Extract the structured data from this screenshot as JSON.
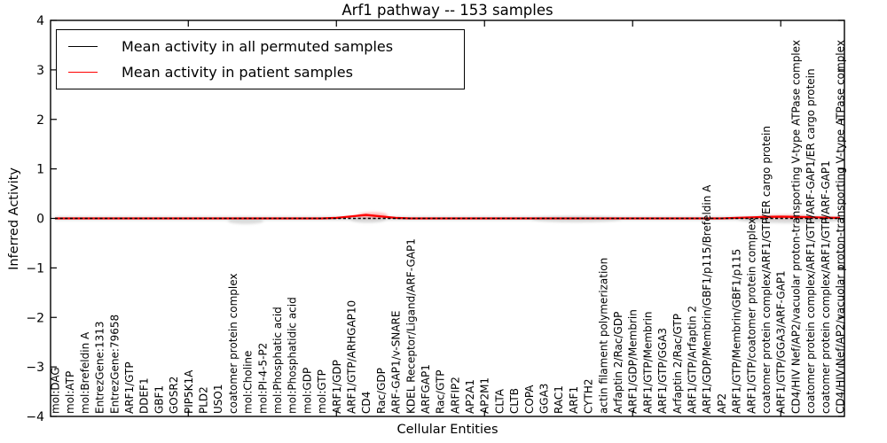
{
  "title": "Arf1 pathway -- 153 samples",
  "legend": {
    "items": [
      {
        "label": "Mean activity in all permuted samples",
        "color": "#000000"
      },
      {
        "label": "Mean activity in patient samples",
        "color": "#ff0000"
      }
    ]
  },
  "axes": {
    "xlabel": "Cellular Entities",
    "ylabel": "Inferred Activity"
  },
  "chart_data": {
    "type": "line",
    "title": "Arf1 pathway -- 153 samples",
    "xlabel": "Cellular Entities",
    "ylabel": "Inferred Activity",
    "ylim": [
      -4,
      4
    ],
    "y_ticks": [
      -4,
      -3,
      -2,
      -1,
      0,
      1,
      2,
      3,
      4
    ],
    "x_major_tick_indices": [
      9,
      19,
      29,
      39,
      49
    ],
    "grid": false,
    "legend_position": "upper left",
    "categories": [
      "mol:DAG",
      "mol:ATP",
      "mol:Brefeldin A",
      "EntrezGene:1313",
      "EntrezGene:79658",
      "ARF1/GTP",
      "DDEF1",
      "GBF1",
      "GOSR2",
      "PIP5K1A",
      "PLD2",
      "USO1",
      "coatomer protein complex",
      "mol:Choline",
      "mol:PI-4-5-P2",
      "mol:Phosphatic acid",
      "mol:Phosphatidic acid",
      "mol:GDP",
      "mol:GTP",
      "ARF1/GDP",
      "ARF1/GTP/ARHGAP10",
      "CD4",
      "Rac/GDP",
      "ARF-GAP1/v-SNARE",
      "KDEL Receptor/Ligand/ARF-GAP1",
      "ARFGAP1",
      "Rac/GTP",
      "ARFIP2",
      "AP2A1",
      "AP2M1",
      "CLTA",
      "CLTB",
      "COPA",
      "GGA3",
      "RAC1",
      "ARF1",
      "CYTH2",
      "actin filament polymerization",
      "Arfaptin 2/Rac/GDP",
      "ARF1/GDP/Membrin",
      "ARF1/GTP/Membrin",
      "ARF1/GTP/GGA3",
      "Arfaptin 2/Rac/GTP",
      "ARF1/GTP/Arfaptin 2",
      "ARF1/GDP/Membrin/GBF1/p115/Brefeldin A",
      "AP2",
      "ARF1/GTP/Membrin/GBF1/p115",
      "ARF1/GTP/coatomer protein complex",
      "coatomer protein complex/ARF1/GTP/ER cargo protein",
      "ARF1/GTP/GGA3/ARF-GAP1",
      "CD4/HIV Nef/AP2/vacuolar proton-transporting V-type ATPase complex",
      "coatomer protein complex/ARF1/GTP/ARF-GAP1/ER cargo protein",
      "coatomer protein complex/ARF1/GTP/ARF-GAP1",
      "CD4/HIV Nef/AP2/vacuolar proton-transporting V-type ATPase complex"
    ],
    "series": [
      {
        "name": "Mean activity in all permuted samples",
        "color": "#000000",
        "values": [
          0,
          0,
          0,
          0,
          0,
          0,
          0,
          0,
          0,
          0,
          0,
          0,
          0,
          0,
          0,
          0,
          0,
          0,
          0,
          0,
          0,
          0,
          0,
          0,
          0,
          0,
          0,
          0,
          0,
          0,
          0,
          0,
          0,
          0,
          0,
          0,
          0,
          0,
          0,
          0,
          0,
          0,
          0,
          0,
          0,
          0,
          0,
          0,
          0,
          0,
          0,
          0,
          0,
          0
        ]
      },
      {
        "name": "Mean activity in patient samples",
        "color": "#ff0000",
        "values": [
          0,
          0,
          0,
          0,
          0,
          0,
          0,
          0,
          0,
          0,
          0,
          0,
          0,
          0,
          0,
          0,
          0,
          0,
          0,
          0.01,
          0.04,
          0.07,
          0.04,
          0.01,
          0,
          0,
          0,
          0,
          0,
          0,
          0,
          0,
          0,
          0,
          0,
          0,
          0,
          0,
          0,
          0,
          0,
          0,
          0,
          0,
          0,
          0,
          0.01,
          0.02,
          0.03,
          0.035,
          0.03,
          0.025,
          0.015,
          0.01
        ]
      }
    ]
  }
}
